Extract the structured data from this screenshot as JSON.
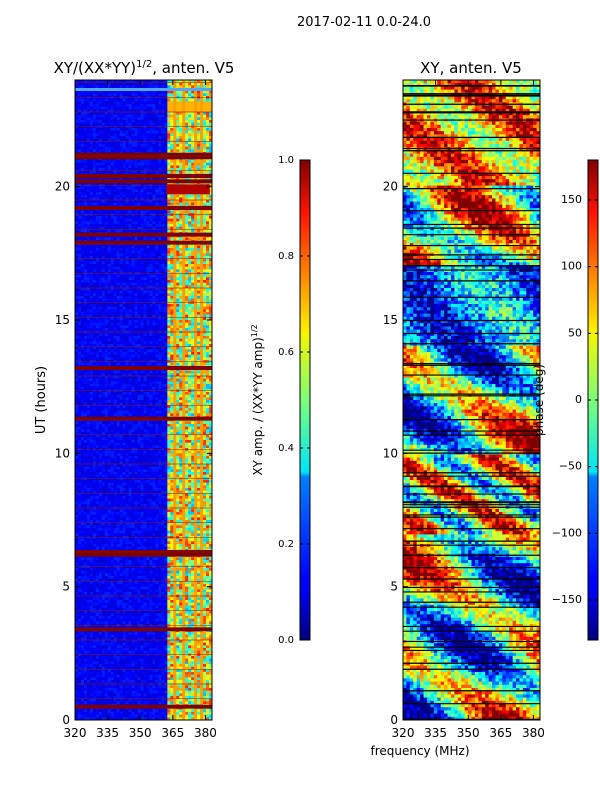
{
  "suptitle": "2017-02-11 0.0-24.0",
  "chart_data": [
    {
      "type": "heatmap",
      "title": "XY/(XX*YY)^{1/2}, anten. V5",
      "title_main": "XY/(XX*YY)",
      "title_sup": "1/2",
      "title_tail": ", anten. V5",
      "xlabel": "",
      "ylabel": "UT (hours)",
      "xlim": [
        320,
        383
      ],
      "ylim": [
        0,
        24
      ],
      "xticks": [
        320,
        335,
        350,
        365,
        380
      ],
      "yticks": [
        0,
        5,
        10,
        15,
        20
      ],
      "colormap": "jet",
      "description_values": "normalized cross-correlation amplitude; low (~0.05) below 362 MHz, high (0.4-0.9) in 362-383 MHz band; flagged rows saturate at 1.0",
      "saturated_rows_ut": [
        0.5,
        3.4,
        6.2,
        6.3,
        11.3,
        13.2,
        17.9,
        18.2,
        19.2,
        20.2,
        20.4,
        21.1,
        21.2
      ],
      "hot_spots": [
        {
          "ut": 19.9,
          "freq": [
            362,
            382
          ],
          "value": 0.95
        }
      ],
      "colorbar": {
        "label": "XY amp. / (XX*YY amp)^{1/2}",
        "label_main": "XY amp. / (XX*YY amp)",
        "label_sup": "1/2",
        "range": [
          0.0,
          1.0
        ],
        "ticks": [
          "0.0",
          "0.2",
          "0.4",
          "0.6",
          "0.8",
          "1.0"
        ],
        "tick_values": [
          0.0,
          0.2,
          0.4,
          0.6,
          0.8,
          1.0
        ]
      }
    },
    {
      "type": "heatmap",
      "title": "XY, anten. V5",
      "xlabel": "frequency (MHz)",
      "ylabel": "",
      "xlim": [
        320,
        383
      ],
      "ylim": [
        0,
        24
      ],
      "xticks": [
        320,
        335,
        350,
        365,
        380
      ],
      "yticks": [
        0,
        5,
        10,
        15,
        20
      ],
      "colormap": "jet",
      "description_values": "cross-correlation phase in degrees, spans full -180..180 range; structured patches drifting in frequency",
      "colorbar": {
        "label": "phase (deg)",
        "range": [
          -180,
          180
        ],
        "ticks": [
          "150",
          "100",
          "50",
          "0",
          "−50",
          "−100",
          "−150"
        ],
        "tick_values": [
          150,
          100,
          50,
          0,
          -50,
          -100,
          -150
        ]
      }
    }
  ]
}
